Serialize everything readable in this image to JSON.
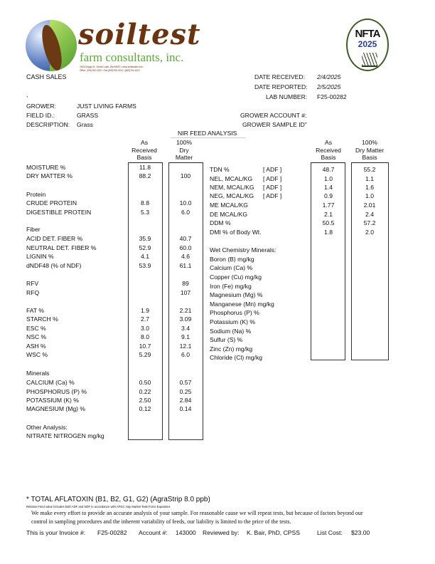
{
  "logo": {
    "word": "soiltest",
    "sub": "farm consultants, inc.",
    "address": "2925 Driggs Dr., Moses Lake, Wa 98837  •  www.soiltestlab.com",
    "phones": "Office: (509)765-1622  •  Fax:(509)765-0314  •  (800)764-1622"
  },
  "seal": {
    "name": "NFTA",
    "year": "2025"
  },
  "header": {
    "account_type": "CASH SALES",
    "comma": ",",
    "date_received_label": "DATE RECEIVED:",
    "date_received": "2/4/2025",
    "date_reported_label": "DATE REPORTED:",
    "date_reported": "2/5/2025",
    "lab_number_label": "LAB NUMBER:",
    "lab_number": "F25-00282",
    "grower_label": "GROWER:",
    "grower": "JUST LIVING FARMS",
    "field_label": "FIELD ID.:",
    "field": "GRASS",
    "description_label": "DESCRIPTION:",
    "description": "Grass",
    "grower_account_label": "GROWER ACCOUNT #:",
    "grower_sample_label": "GROWER SAMPLE ID\""
  },
  "section_title": "NIR FEED ANALYSIS",
  "left_headers": {
    "as_received": [
      "As",
      "Received",
      "Basis"
    ],
    "dry_matter": [
      "100%",
      "Dry",
      "Matter"
    ]
  },
  "right_headers": {
    "as_received": [
      "As",
      "Received",
      "Basis"
    ],
    "dry_matter": [
      "100%",
      "Dry Matter",
      "Basis"
    ]
  },
  "left_rows": [
    {
      "label": "MOISTURE %",
      "ar": "11.8",
      "dm": ""
    },
    {
      "label": "DRY MATTER %",
      "ar": "88.2",
      "dm": "100"
    },
    {
      "label": "Protein",
      "ar": "",
      "dm": ""
    },
    {
      "label": "CRUDE PROTEIN",
      "ar": "8.8",
      "dm": "10.0"
    },
    {
      "label": "DIGESTIBLE PROTEIN",
      "ar": "5.3",
      "dm": "6.0"
    },
    {
      "label": "Fiber",
      "ar": "",
      "dm": ""
    },
    {
      "label": "ACID DET. FIBER %",
      "ar": "35.9",
      "dm": "40.7"
    },
    {
      "label": "NEUTRAL DET. FIBER %",
      "ar": "52.9",
      "dm": "60.0"
    },
    {
      "label": "LIGNIN %",
      "ar": "4.1",
      "dm": "4.6"
    },
    {
      "label": "dNDF48 (% of NDF)",
      "ar": "53.9",
      "dm": "61.1"
    },
    {
      "label": "RFV",
      "ar": "",
      "dm": "89"
    },
    {
      "label": "RFQ",
      "ar": "",
      "dm": "107"
    },
    {
      "label": "FAT %",
      "ar": "1.9",
      "dm": "2.21"
    },
    {
      "label": "STARCH %",
      "ar": "2.7",
      "dm": "3.09"
    },
    {
      "label": "ESC %",
      "ar": "3.0",
      "dm": "3.4"
    },
    {
      "label": "NSC %",
      "ar": "8.0",
      "dm": "9.1"
    },
    {
      "label": "ASH %",
      "ar": "10.7",
      "dm": "12.1"
    },
    {
      "label": "WSC %",
      "ar": "5.29",
      "dm": "6.0"
    },
    {
      "label": "Minerals",
      "ar": "",
      "dm": ""
    },
    {
      "label": "CALCIUM (Ca) %",
      "ar": "0.50",
      "dm": "0.57"
    },
    {
      "label": "PHOSPHORUS (P) %",
      "ar": "0.22",
      "dm": "0.25"
    },
    {
      "label": "POTASSIUM (K) %",
      "ar": "2.50",
      "dm": "2.84"
    },
    {
      "label": "MAGNESIUM (Mg) %",
      "ar": "0.12",
      "dm": "0.14"
    },
    {
      "label": "Other Analysis:",
      "ar": "",
      "dm": ""
    },
    {
      "label": "NITRATE NITROGEN mg/kg",
      "ar": "",
      "dm": ""
    }
  ],
  "right_rows": [
    {
      "label": "TDN %",
      "method": "[  ADF  ]",
      "ar": "48.7",
      "dm": "55.2"
    },
    {
      "label": "NEL, MCAL/KG",
      "method": "[  ADF  ]",
      "ar": "1.0",
      "dm": "1.1"
    },
    {
      "label": "NEM, MCAL/KG",
      "method": "[  ADF  ]",
      "ar": "1.4",
      "dm": "1.6"
    },
    {
      "label": "NEG, MCAL/KG",
      "method": "[  ADF  ]",
      "ar": "0.9",
      "dm": "1.0"
    },
    {
      "label": "ME MCAL/KG",
      "method": "",
      "ar": "1.77",
      "dm": "2.01"
    },
    {
      "label": "DE MCAL/KG",
      "method": "",
      "ar": "2.1",
      "dm": "2.4"
    },
    {
      "label": "DDM %",
      "method": "",
      "ar": "50.5",
      "dm": "57.2"
    },
    {
      "label": "DMI % of Body Wt.",
      "method": "",
      "ar": "1.8",
      "dm": "2.0"
    },
    {
      "label": "Wet Chemistry Minerals:",
      "method": "",
      "ar": "",
      "dm": ""
    },
    {
      "label": "Boron (B) mg/kg",
      "method": "",
      "ar": "",
      "dm": ""
    },
    {
      "label": "Calcium (Ca) %",
      "method": "",
      "ar": "",
      "dm": ""
    },
    {
      "label": "Copper  (Cu)  mg/kg",
      "method": "",
      "ar": "",
      "dm": ""
    },
    {
      "label": "Iron  (Fe)  mg/kg",
      "method": "",
      "ar": "",
      "dm": ""
    },
    {
      "label": "Magnesium (Mg) %",
      "method": "",
      "ar": "",
      "dm": ""
    },
    {
      "label": "Manganese  (Mn)  mg/kg",
      "method": "",
      "ar": "",
      "dm": ""
    },
    {
      "label": "Phosphorus (P) %",
      "method": "",
      "ar": "",
      "dm": ""
    },
    {
      "label": "Potassium (K) %",
      "method": "",
      "ar": "",
      "dm": ""
    },
    {
      "label": "Sodium  (Na)  %",
      "method": "",
      "ar": "",
      "dm": ""
    },
    {
      "label": "Sulfur  (S)  %",
      "method": "",
      "ar": "",
      "dm": ""
    },
    {
      "label": "Zinc (Zn) mg/kg",
      "method": "",
      "ar": "",
      "dm": ""
    },
    {
      "label": "Chloride (Cl) mg/kg",
      "method": "",
      "ar": "",
      "dm": ""
    }
  ],
  "footer": {
    "aflatoxin": "* TOTAL AFLATOXIN (B1, B2, G1, G2) (AgraStrip 8.0 ppb)",
    "rfv_note": "Relative Feed value includes both ADF and NDF in accordance with AFGC Hay Market Task Force Equations",
    "disclaimer_1": "We make every effort to provide an accurate analysis of your sample.  For reasonable cause we will repeat tests, but because of factors beyond our",
    "disclaimer_2": "control in sampling procedures and the inherent variability of feeds, our liability is limited to the price of the tests.",
    "invoice_label": "This is your Invoice  #:",
    "invoice": "F25-00282",
    "account_label": "Account #:",
    "account": "143000",
    "reviewed_label": "Reviewed by:",
    "reviewed": "K. Bair, PhD, CPSS",
    "cost_label": "List Cost:",
    "cost": "$23.00"
  }
}
